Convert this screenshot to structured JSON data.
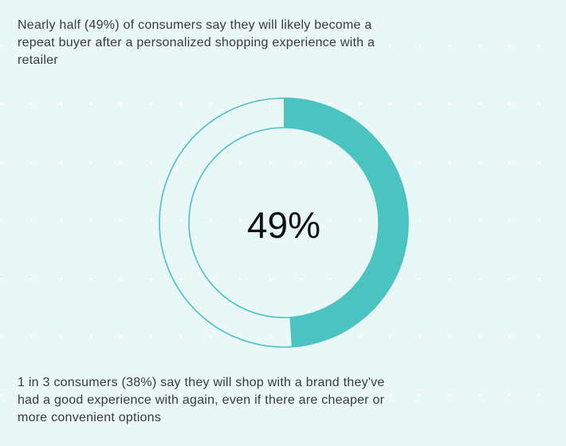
{
  "headline": "Nearly half (49%) of consumers say they will likely become a repeat buyer after a personalized shopping experience with a retailer",
  "footnote": "1 in 3 consumers (38%) say they will shop with a brand they've had a good experience with again, even if there are cheaper or more convenient options",
  "colors": {
    "accent": "#4bc3c1",
    "background": "#e9f7f7",
    "ring_outline": "#4bc3c1",
    "text": "#3a3a3a"
  },
  "chart_data": {
    "type": "pie",
    "style": "donut",
    "slices": [
      {
        "value": 49
      },
      {
        "value": 51
      }
    ],
    "center_label": "49%",
    "start": "top",
    "direction": "clockwise"
  }
}
